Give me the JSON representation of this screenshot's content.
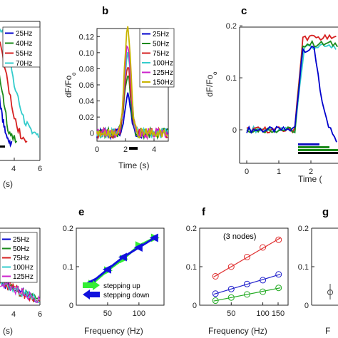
{
  "panel_labels": {
    "b": "b",
    "c": "c",
    "e": "e",
    "f": "f",
    "g": "g"
  },
  "chart_data": [
    {
      "id": "a",
      "type": "line",
      "xlabel": "(s)",
      "xticks": [
        "4",
        "6"
      ],
      "legend": [
        "25Hz",
        "40Hz",
        "55Hz",
        "70Hz"
      ],
      "colors": [
        "#0000cc",
        "#1a8a1a",
        "#d62020",
        "#33cccc"
      ],
      "series": [
        {
          "name": "25Hz",
          "values": [
            [
              2.6,
              0.1
            ],
            [
              2.8,
              0.07
            ],
            [
              3.0,
              0.04
            ],
            [
              3.2,
              0.02
            ],
            [
              3.4,
              0.005
            ],
            [
              3.6,
              0
            ],
            [
              3.8,
              0
            ]
          ]
        },
        {
          "name": "40Hz",
          "values": [
            [
              2.6,
              0.12
            ],
            [
              2.9,
              0.09
            ],
            [
              3.2,
              0.05
            ],
            [
              3.5,
              0.02
            ],
            [
              3.8,
              0.005
            ],
            [
              4.2,
              0
            ]
          ]
        },
        {
          "name": "55Hz",
          "values": [
            [
              2.6,
              0.15
            ],
            [
              3.0,
              0.13
            ],
            [
              3.4,
              0.09
            ],
            [
              3.8,
              0.05
            ],
            [
              4.2,
              0.02
            ],
            [
              4.6,
              0.005
            ],
            [
              5.0,
              0
            ]
          ]
        },
        {
          "name": "70Hz",
          "values": [
            [
              2.6,
              0.16
            ],
            [
              3.1,
              0.15
            ],
            [
              3.6,
              0.12
            ],
            [
              4.0,
              0.08
            ],
            [
              4.4,
              0.05
            ],
            [
              4.8,
              0.03
            ],
            [
              5.2,
              0.015
            ],
            [
              5.6,
              0.01
            ],
            [
              5.9,
              0.005
            ]
          ]
        }
      ]
    },
    {
      "id": "b",
      "type": "line",
      "xlabel": "Time (s)",
      "ylabel": "dF/Fo",
      "xlim": [
        0,
        5
      ],
      "ylim": [
        -0.01,
        0.13
      ],
      "xticks": [
        "0",
        "2",
        "4"
      ],
      "yticks": [
        "0",
        "0.02",
        "0.04",
        "0.06",
        "0.08",
        "0.10",
        "0.12"
      ],
      "legend": [
        "25Hz",
        "50Hz",
        "75Hz",
        "100Hz",
        "125Hz",
        "150Hz"
      ],
      "colors": [
        "#0000cc",
        "#1a8a1a",
        "#d62020",
        "#33cccc",
        "#cc22cc",
        "#c8b400"
      ],
      "peaks": [
        0.045,
        0.07,
        0.085,
        0.1,
        0.11,
        0.127
      ],
      "stim_bar": [
        2.0,
        2.5
      ]
    },
    {
      "id": "c",
      "type": "line",
      "xlabel": "Time (",
      "ylabel": "dF/Fo",
      "xlim": [
        0,
        3.2
      ],
      "ylim": [
        -0.03,
        0.2
      ],
      "xticks": [
        "0",
        "1",
        "2"
      ],
      "yticks": [
        "0",
        "0.1",
        "0.2"
      ],
      "colors": [
        "#0000cc",
        "#1a8a1a",
        "#d62020",
        "#33cccc"
      ],
      "series": [
        {
          "name": "blue",
          "values": [
            [
              0,
              0
            ],
            [
              1.5,
              0
            ],
            [
              1.75,
              0.155
            ],
            [
              2.1,
              0.155
            ],
            [
              2.35,
              0.05
            ],
            [
              2.55,
              0.01
            ],
            [
              2.8,
              -0.02
            ],
            [
              3.2,
              -0.03
            ]
          ]
        },
        {
          "name": "green",
          "values": [
            [
              0,
              0
            ],
            [
              1.5,
              0
            ],
            [
              1.75,
              0.165
            ],
            [
              2.9,
              0.165
            ],
            [
              3.05,
              0.05
            ],
            [
              3.2,
              0.01
            ]
          ]
        },
        {
          "name": "red",
          "values": [
            [
              0,
              0
            ],
            [
              1.5,
              0
            ],
            [
              1.75,
              0.178
            ],
            [
              3.2,
              0.175
            ]
          ]
        },
        {
          "name": "cyan",
          "values": [
            [
              0,
              0
            ],
            [
              1.5,
              0
            ],
            [
              1.8,
              0.16
            ],
            [
              3.2,
              0.16
            ]
          ]
        }
      ]
    },
    {
      "id": "d",
      "type": "line",
      "xlabel": "(s)",
      "xticks": [
        "4",
        "6"
      ],
      "legend": [
        "25Hz",
        "50Hz",
        "75Hz",
        "100Hz",
        "125Hz"
      ],
      "colors": [
        "#0000cc",
        "#1a8a1a",
        "#d62020",
        "#33cccc",
        "#cc22cc"
      ]
    },
    {
      "id": "e",
      "type": "line",
      "xlabel": "Frequency (Hz)",
      "xlim": [
        0,
        140
      ],
      "ylim": [
        0,
        0.2
      ],
      "xticks": [
        "50",
        "100"
      ],
      "yticks": [
        "0",
        "0.1",
        "0.2"
      ],
      "x": [
        25,
        50,
        75,
        100,
        125
      ],
      "series": [
        {
          "name": "stepping up",
          "color": "#33ee33",
          "values": [
            0.055,
            0.09,
            0.12,
            0.155,
            0.175
          ]
        },
        {
          "name": "stepping down",
          "color": "#1111dd",
          "values": [
            0.06,
            0.093,
            0.125,
            0.15,
            0.175
          ]
        }
      ]
    },
    {
      "id": "f",
      "type": "scatter",
      "xlabel": "Frequency (Hz)",
      "annotation": "(3 nodes)",
      "xlim": [
        0,
        140
      ],
      "ylim": [
        0,
        0.2
      ],
      "xticks": [
        "50",
        "100",
        "150"
      ],
      "yticks": [
        "0",
        "0.1",
        "0.2"
      ],
      "x": [
        25,
        50,
        75,
        100,
        125
      ],
      "series": [
        {
          "color": "#e03030",
          "values": [
            0.075,
            0.1,
            0.125,
            0.15,
            0.17
          ]
        },
        {
          "color": "#2222cc",
          "values": [
            0.03,
            0.042,
            0.055,
            0.065,
            0.08
          ]
        },
        {
          "color": "#22aa22",
          "values": [
            0.012,
            0.02,
            0.028,
            0.035,
            0.045
          ]
        }
      ]
    },
    {
      "id": "g",
      "type": "scatter",
      "xlabel": "F",
      "yticks": [
        "0",
        "0.1",
        "0.2"
      ]
    }
  ]
}
